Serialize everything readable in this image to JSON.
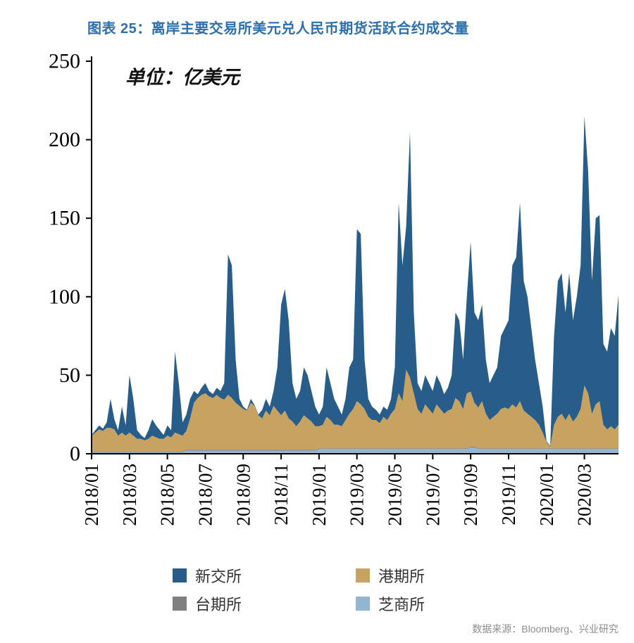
{
  "header": {
    "title": "图表 25：离岸主要交易所美元兑人民币期货活跃合约成交量"
  },
  "unit_label": "单位：亿美元",
  "source_text": "数据来源：Bloomberg、兴业研究",
  "colors": {
    "title_blue": "#2d6fac",
    "axis": "#000000",
    "sgx_blue": "#275d88",
    "hkex_tan": "#c7a260",
    "taifex_gray": "#7f7f7f",
    "cme_lightblue": "#92b5d3",
    "source_gray": "#8c8c8c"
  },
  "chart_data": {
    "type": "area",
    "stacked": true,
    "stack_order": "bottom_to_top",
    "title": "图表 25：离岸主要交易所美元兑人民币期货活跃合约成交量",
    "xlabel": "",
    "ylabel": "单位：亿美元",
    "ylim": [
      0,
      250
    ],
    "y_ticks": [
      0,
      50,
      100,
      150,
      200,
      250
    ],
    "x_tick_labels": [
      "2018/01",
      "2018/03",
      "2018/05",
      "2018/07",
      "2018/09",
      "2018/11",
      "2019/01",
      "2019/03",
      "2019/05",
      "2019/07",
      "2019/09",
      "2019/11",
      "2020/01",
      "2020/03"
    ],
    "x_tick_indices": [
      0,
      10,
      20,
      30,
      40,
      50,
      60,
      70,
      80,
      90,
      100,
      110,
      120,
      130
    ],
    "legend": [
      {
        "label": "新交所",
        "color": "#275d88"
      },
      {
        "label": "港期所",
        "color": "#c7a260"
      },
      {
        "label": "台期所",
        "color": "#7f7f7f"
      },
      {
        "label": "芝商所",
        "color": "#92b5d3"
      }
    ],
    "series": [
      {
        "id": "cme",
        "name": "芝商所",
        "color": "#92b5d3",
        "values": [
          1,
          1,
          1,
          1,
          1,
          1,
          1,
          1,
          1,
          1,
          1,
          1,
          1,
          1,
          1,
          1,
          1,
          1,
          1,
          1,
          1,
          1,
          1,
          1,
          1,
          2,
          2,
          2,
          2,
          2,
          2,
          2,
          2,
          2,
          2,
          2,
          2,
          2,
          2,
          2,
          2,
          2,
          2,
          2,
          2,
          2,
          2,
          2,
          2,
          2,
          2,
          2,
          2,
          2,
          2,
          2,
          2,
          2,
          2,
          2,
          3,
          3,
          3,
          3,
          3,
          3,
          3,
          3,
          3,
          3,
          3,
          3,
          3,
          3,
          3,
          3,
          3,
          3,
          3,
          3,
          3,
          3,
          3,
          3,
          3,
          3,
          3,
          3,
          3,
          3,
          3,
          3,
          3,
          3,
          3,
          3,
          3,
          3,
          3,
          3,
          4,
          4,
          3,
          3,
          3,
          3,
          3,
          3,
          3,
          3,
          3,
          3,
          3,
          3,
          3,
          3,
          3,
          3,
          3,
          3,
          3,
          3,
          3,
          3,
          3,
          3,
          3,
          3,
          3,
          3,
          3,
          3,
          3,
          3,
          3,
          3,
          3,
          3,
          3,
          3
        ]
      },
      {
        "id": "taifex",
        "name": "台期所",
        "color": "#7f7f7f",
        "values": [
          0.5,
          0.5,
          0.5,
          0.5,
          0.5,
          0.5,
          0.5,
          0.5,
          0.5,
          0.5,
          0.5,
          0.5,
          0.5,
          0.5,
          0.5,
          0.5,
          0.5,
          0.5,
          0.5,
          0.5,
          0.5,
          0.5,
          0.5,
          0.5,
          0.5,
          0.5,
          0.5,
          0.5,
          0.5,
          0.5,
          0.5,
          0.5,
          0.5,
          0.5,
          0.5,
          0.5,
          0.5,
          0.5,
          0.5,
          0.5,
          0.5,
          0.5,
          0.5,
          0.5,
          0.5,
          0.5,
          0.5,
          0.5,
          0.5,
          0.5,
          0.5,
          0.5,
          0.5,
          0.5,
          0.5,
          0.5,
          0.5,
          0.5,
          0.5,
          0.5,
          0.5,
          0.5,
          0.5,
          0.5,
          0.5,
          0.5,
          0.5,
          0.5,
          0.5,
          0.5,
          0.5,
          0.5,
          0.5,
          0.5,
          0.5,
          0.5,
          0.5,
          0.5,
          0.5,
          0.5,
          0.5,
          0.5,
          0.5,
          0.5,
          0.5,
          0.5,
          0.5,
          0.5,
          0.5,
          0.5,
          0.5,
          0.5,
          0.5,
          0.5,
          0.5,
          0.5,
          0.5,
          0.5,
          0.5,
          0.5,
          0.5,
          0.5,
          0.5,
          0.5,
          0.5,
          0.5,
          0.5,
          0.5,
          0.5,
          0.5,
          0.5,
          0.5,
          0.5,
          0.5,
          0.5,
          0.5,
          0.5,
          0.5,
          0.5,
          0.5,
          0.5,
          0.5,
          0.5,
          0.5,
          0.5,
          0.5,
          0.5,
          0.5,
          0.5,
          0.5,
          0.5,
          0.5,
          0.5,
          0.5,
          0.5,
          0.5,
          0.5,
          0.5,
          0.5,
          0.5
        ]
      },
      {
        "id": "hkex",
        "name": "港期所",
        "color": "#c7a260",
        "values": [
          10,
          12,
          14,
          13,
          15,
          15,
          14,
          10,
          12,
          10,
          12,
          10,
          8,
          8,
          7,
          8,
          10,
          9,
          8,
          8,
          10,
          9,
          12,
          11,
          10,
          12,
          20,
          30,
          33,
          35,
          36,
          34,
          33,
          35,
          33,
          32,
          35,
          33,
          30,
          28,
          26,
          25,
          30,
          28,
          22,
          20,
          25,
          22,
          28,
          25,
          22,
          25,
          20,
          18,
          15,
          18,
          22,
          20,
          18,
          15,
          14,
          15,
          20,
          18,
          15,
          15,
          14,
          18,
          22,
          25,
          30,
          28,
          25,
          20,
          18,
          18,
          16,
          20,
          18,
          22,
          25,
          35,
          30,
          50,
          45,
          35,
          25,
          22,
          28,
          25,
          22,
          28,
          25,
          22,
          24,
          25,
          32,
          30,
          25,
          35,
          35,
          28,
          26,
          30,
          22,
          18,
          20,
          22,
          25,
          26,
          25,
          28,
          26,
          30,
          24,
          22,
          20,
          18,
          15,
          10,
          4,
          1,
          15,
          20,
          22,
          18,
          22,
          17,
          20,
          25,
          40,
          35,
          22,
          28,
          30,
          15,
          12,
          14,
          12,
          15
        ]
      },
      {
        "id": "sgx",
        "name": "新交所",
        "color": "#275d88",
        "values": [
          0.5,
          1.5,
          2.5,
          1.5,
          3.5,
          18.5,
          6.5,
          3.5,
          16.5,
          6.5,
          36.5,
          23.5,
          5.5,
          2.5,
          1.5,
          5.5,
          10.5,
          7.5,
          5.5,
          2.5,
          6.5,
          4.5,
          51.5,
          32.5,
          8.5,
          10.5,
          12.5,
          7.5,
          2.5,
          4.5,
          6.5,
          3.5,
          2.5,
          4.5,
          4.5,
          10.5,
          89.5,
          84.5,
          27.5,
          4.5,
          1.5,
          0.5,
          2.5,
          0.5,
          0.5,
          5.5,
          7.5,
          5.5,
          9.5,
          27.5,
          70.5,
          77.5,
          62.5,
          24.5,
          17.5,
          19.5,
          30.5,
          27.5,
          19.5,
          12.5,
          7.5,
          11.5,
          31.5,
          23.5,
          16.5,
          11.5,
          7.5,
          13.5,
          29.5,
          31.5,
          109.5,
          108.5,
          31.5,
          11.5,
          8.5,
          6.5,
          5.5,
          6.5,
          6.5,
          9.5,
          26.5,
          121.5,
          86.5,
          91.5,
          156.5,
          51.5,
          16.5,
          14.5,
          18.5,
          16.5,
          14.5,
          18.5,
          16.5,
          12.5,
          14.5,
          21.5,
          54.5,
          51.5,
          31.5,
          61.5,
          95.5,
          57.5,
          55.5,
          61.5,
          34.5,
          23.5,
          26.5,
          29.5,
          46.5,
          50.5,
          56.5,
          88.5,
          95.5,
          126.5,
          82.5,
          74.5,
          56.5,
          38.5,
          26.5,
          16.5,
          0.5,
          0.5,
          56.5,
          86.5,
          89.5,
          68.5,
          89.5,
          64.5,
          76.5,
          91.5,
          171.5,
          141.5,
          84.5,
          118.5,
          118.5,
          51.5,
          49.5,
          62.5,
          59.5,
          82.5
        ]
      }
    ]
  }
}
